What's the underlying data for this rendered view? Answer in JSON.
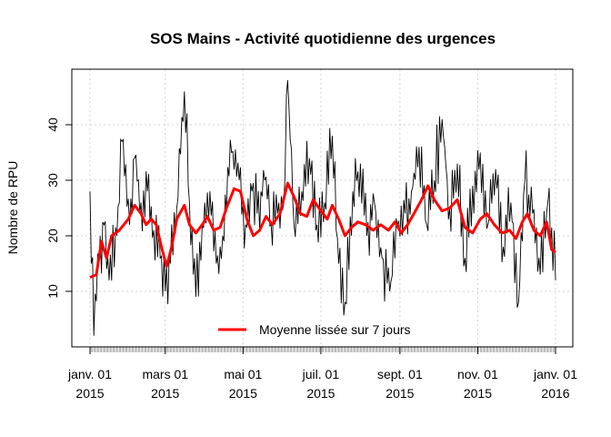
{
  "chart_data": {
    "type": "line",
    "title": "SOS Mains - Activité quotidienne des urgences",
    "ylabel": "Nombre de RPU",
    "xlabel": "",
    "x_range": [
      "2015-01-01",
      "2016-01-01"
    ],
    "ylim": [
      0,
      50
    ],
    "y_ticks": [
      10,
      20,
      30,
      40
    ],
    "x_ticks": [
      {
        "date": "2015-01-01",
        "line1": "janv. 01",
        "line2": "2015"
      },
      {
        "date": "2015-03-01",
        "line1": "mars 01",
        "line2": "2015"
      },
      {
        "date": "2015-05-01",
        "line1": "mai 01",
        "line2": "2015"
      },
      {
        "date": "2015-07-01",
        "line1": "juil. 01",
        "line2": "2015"
      },
      {
        "date": "2015-09-01",
        "line1": "sept. 01",
        "line2": "2015"
      },
      {
        "date": "2015-11-01",
        "line1": "nov. 01",
        "line2": "2015"
      },
      {
        "date": "2016-01-01",
        "line1": "janv. 01",
        "line2": "2016"
      }
    ],
    "grid": true,
    "legend": {
      "position": "bottom-center",
      "label": "Moyenne lissée sur 7 jours"
    },
    "series": [
      {
        "role": "daily",
        "color": "#000000",
        "anchors": [
          [
            "2015-01-01",
            28
          ],
          [
            "2015-01-04",
            2
          ],
          [
            "2015-01-08",
            15
          ],
          [
            "2015-01-12",
            22
          ],
          [
            "2015-01-16",
            12
          ],
          [
            "2015-01-22",
            20
          ],
          [
            "2015-01-26",
            37
          ],
          [
            "2015-02-01",
            22
          ],
          [
            "2015-02-05",
            34
          ],
          [
            "2015-02-10",
            26
          ],
          [
            "2015-02-15",
            28
          ],
          [
            "2015-02-20",
            21
          ],
          [
            "2015-02-25",
            16
          ],
          [
            "2015-03-01",
            10
          ],
          [
            "2015-03-05",
            15
          ],
          [
            "2015-03-10",
            25
          ],
          [
            "2015-03-16",
            46
          ],
          [
            "2015-03-20",
            26
          ],
          [
            "2015-03-25",
            9
          ],
          [
            "2015-03-30",
            22
          ],
          [
            "2015-04-05",
            28
          ],
          [
            "2015-04-10",
            15
          ],
          [
            "2015-04-15",
            20
          ],
          [
            "2015-04-22",
            35
          ],
          [
            "2015-04-28",
            30
          ],
          [
            "2015-05-03",
            22
          ],
          [
            "2015-05-08",
            28
          ],
          [
            "2015-05-12",
            24
          ],
          [
            "2015-05-18",
            30
          ],
          [
            "2015-05-23",
            22
          ],
          [
            "2015-05-28",
            24
          ],
          [
            "2015-06-02",
            26
          ],
          [
            "2015-06-05",
            48
          ],
          [
            "2015-06-10",
            22
          ],
          [
            "2015-06-16",
            28
          ],
          [
            "2015-06-22",
            34
          ],
          [
            "2015-06-28",
            22
          ],
          [
            "2015-07-04",
            26
          ],
          [
            "2015-07-10",
            38
          ],
          [
            "2015-07-15",
            15
          ],
          [
            "2015-07-20",
            8
          ],
          [
            "2015-07-26",
            28
          ],
          [
            "2015-08-01",
            33
          ],
          [
            "2015-08-06",
            20
          ],
          [
            "2015-08-12",
            26
          ],
          [
            "2015-08-18",
            16
          ],
          [
            "2015-08-24",
            10
          ],
          [
            "2015-08-30",
            22
          ],
          [
            "2015-09-05",
            24
          ],
          [
            "2015-09-10",
            28
          ],
          [
            "2015-09-16",
            36
          ],
          [
            "2015-09-22",
            22
          ],
          [
            "2015-09-28",
            30
          ],
          [
            "2015-10-04",
            41
          ],
          [
            "2015-10-10",
            25
          ],
          [
            "2015-10-16",
            33
          ],
          [
            "2015-10-22",
            16
          ],
          [
            "2015-10-28",
            29
          ],
          [
            "2015-11-03",
            35
          ],
          [
            "2015-11-09",
            22
          ],
          [
            "2015-11-15",
            32
          ],
          [
            "2015-11-21",
            18
          ],
          [
            "2015-11-27",
            26
          ],
          [
            "2015-12-03",
            8
          ],
          [
            "2015-12-08",
            30
          ],
          [
            "2015-12-14",
            24
          ],
          [
            "2015-12-20",
            13
          ],
          [
            "2015-12-26",
            26
          ],
          [
            "2016-01-01",
            12
          ]
        ]
      },
      {
        "name": "Moyenne lissée sur 7 jours",
        "role": "smoothed",
        "color": "#ff0000",
        "points": [
          [
            "2015-01-01",
            12.5
          ],
          [
            "2015-01-06",
            13
          ],
          [
            "2015-01-10",
            19
          ],
          [
            "2015-01-14",
            16
          ],
          [
            "2015-01-18",
            20
          ],
          [
            "2015-01-24",
            21
          ],
          [
            "2015-01-31",
            23
          ],
          [
            "2015-02-05",
            25.5
          ],
          [
            "2015-02-10",
            24
          ],
          [
            "2015-02-14",
            22
          ],
          [
            "2015-02-18",
            23
          ],
          [
            "2015-02-22",
            22
          ],
          [
            "2015-02-26",
            18
          ],
          [
            "2015-03-02",
            14.5
          ],
          [
            "2015-03-06",
            18
          ],
          [
            "2015-03-10",
            23
          ],
          [
            "2015-03-16",
            25.5
          ],
          [
            "2015-03-20",
            22
          ],
          [
            "2015-03-25",
            20.5
          ],
          [
            "2015-03-30",
            22
          ],
          [
            "2015-04-03",
            23.5
          ],
          [
            "2015-04-08",
            21
          ],
          [
            "2015-04-13",
            21.5
          ],
          [
            "2015-04-18",
            25
          ],
          [
            "2015-04-24",
            28.5
          ],
          [
            "2015-04-29",
            28
          ],
          [
            "2015-05-04",
            23
          ],
          [
            "2015-05-09",
            20
          ],
          [
            "2015-05-14",
            21
          ],
          [
            "2015-05-19",
            23.5
          ],
          [
            "2015-05-24",
            22
          ],
          [
            "2015-05-30",
            24
          ],
          [
            "2015-06-05",
            29.5
          ],
          [
            "2015-06-10",
            27
          ],
          [
            "2015-06-15",
            24
          ],
          [
            "2015-06-20",
            23.5
          ],
          [
            "2015-06-25",
            26.5
          ],
          [
            "2015-07-01",
            24.5
          ],
          [
            "2015-07-06",
            23
          ],
          [
            "2015-07-10",
            25.5
          ],
          [
            "2015-07-15",
            23
          ],
          [
            "2015-07-20",
            20
          ],
          [
            "2015-07-25",
            21.5
          ],
          [
            "2015-07-30",
            22.5
          ],
          [
            "2015-08-05",
            22
          ],
          [
            "2015-08-11",
            21
          ],
          [
            "2015-08-17",
            22
          ],
          [
            "2015-08-23",
            21
          ],
          [
            "2015-08-28",
            22.5
          ],
          [
            "2015-09-02",
            20.5
          ],
          [
            "2015-09-07",
            22
          ],
          [
            "2015-09-12",
            24
          ],
          [
            "2015-09-18",
            26.5
          ],
          [
            "2015-09-23",
            29
          ],
          [
            "2015-09-28",
            26.5
          ],
          [
            "2015-10-04",
            24.5
          ],
          [
            "2015-10-10",
            25
          ],
          [
            "2015-10-16",
            26.5
          ],
          [
            "2015-10-22",
            21.5
          ],
          [
            "2015-10-28",
            20.5
          ],
          [
            "2015-11-03",
            23
          ],
          [
            "2015-11-08",
            24
          ],
          [
            "2015-11-14",
            22
          ],
          [
            "2015-11-20",
            20.5
          ],
          [
            "2015-11-26",
            21
          ],
          [
            "2015-12-01",
            19.5
          ],
          [
            "2015-12-06",
            22.5
          ],
          [
            "2015-12-10",
            24
          ],
          [
            "2015-12-15",
            21
          ],
          [
            "2015-12-20",
            20
          ],
          [
            "2015-12-25",
            22.5
          ],
          [
            "2015-12-29",
            17.5
          ],
          [
            "2016-01-01",
            17
          ]
        ]
      }
    ]
  }
}
